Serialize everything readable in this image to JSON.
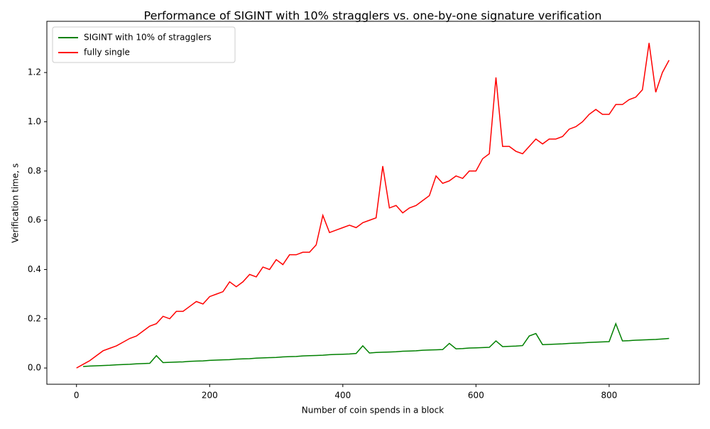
{
  "chart_data": {
    "type": "line",
    "title": "Performance of SIGINT with 10% stragglers vs. one-by-one signature verification",
    "x_label": "Number of coin spends in a block",
    "y_label": "Verification time, s",
    "x": [
      0,
      10,
      20,
      30,
      40,
      50,
      60,
      70,
      80,
      90,
      100,
      110,
      120,
      130,
      140,
      150,
      160,
      170,
      180,
      190,
      200,
      210,
      220,
      230,
      240,
      250,
      260,
      270,
      280,
      290,
      300,
      310,
      320,
      330,
      340,
      350,
      360,
      370,
      380,
      390,
      400,
      410,
      420,
      430,
      440,
      450,
      460,
      470,
      480,
      490,
      500,
      510,
      520,
      530,
      540,
      550,
      560,
      570,
      580,
      590,
      600,
      610,
      620,
      630,
      640,
      650,
      660,
      670,
      680,
      690,
      700,
      710,
      720,
      730,
      740,
      750,
      760,
      770,
      780,
      790,
      800,
      810,
      820,
      830,
      840,
      850,
      860,
      870,
      880,
      890
    ],
    "series": [
      {
        "name": "SIGINT with 10% of stragglers",
        "color": "#008000",
        "values": [
          null,
          0.006,
          0.008,
          0.009,
          0.01,
          0.011,
          0.013,
          0.014,
          0.015,
          0.017,
          0.018,
          0.019,
          0.05,
          0.022,
          0.023,
          0.024,
          0.025,
          0.027,
          0.028,
          0.029,
          0.031,
          0.032,
          0.033,
          0.034,
          0.036,
          0.037,
          0.038,
          0.04,
          0.041,
          0.042,
          0.043,
          0.045,
          0.046,
          0.047,
          0.049,
          0.05,
          0.051,
          0.052,
          0.054,
          0.055,
          0.056,
          0.057,
          0.059,
          0.09,
          0.061,
          0.063,
          0.064,
          0.065,
          0.066,
          0.068,
          0.069,
          0.07,
          0.072,
          0.073,
          0.074,
          0.075,
          0.1,
          0.078,
          0.079,
          0.081,
          0.082,
          0.083,
          0.084,
          0.11,
          0.087,
          0.088,
          0.089,
          0.091,
          0.13,
          0.14,
          0.095,
          0.096,
          0.097,
          0.098,
          0.1,
          0.101,
          0.102,
          0.104,
          0.105,
          0.106,
          0.107,
          0.18,
          0.11,
          0.111,
          0.113,
          0.114,
          0.115,
          0.116,
          0.118,
          0.12
        ]
      },
      {
        "name": "fully single",
        "color": "#ff0000",
        "values": [
          0.0,
          0.015,
          0.03,
          0.05,
          0.07,
          0.08,
          0.09,
          0.105,
          0.12,
          0.13,
          0.15,
          0.17,
          0.18,
          0.21,
          0.2,
          0.23,
          0.23,
          0.25,
          0.27,
          0.26,
          0.29,
          0.3,
          0.31,
          0.35,
          0.33,
          0.35,
          0.38,
          0.37,
          0.41,
          0.4,
          0.44,
          0.42,
          0.46,
          0.46,
          0.47,
          0.47,
          0.5,
          0.62,
          0.55,
          0.56,
          0.57,
          0.58,
          0.57,
          0.59,
          0.6,
          0.61,
          0.82,
          0.65,
          0.66,
          0.63,
          0.65,
          0.66,
          0.68,
          0.7,
          0.78,
          0.75,
          0.76,
          0.78,
          0.77,
          0.8,
          0.8,
          0.85,
          0.87,
          1.18,
          0.9,
          0.9,
          0.88,
          0.87,
          0.9,
          0.93,
          0.91,
          0.93,
          0.93,
          0.94,
          0.97,
          0.98,
          1.0,
          1.03,
          1.05,
          1.03,
          1.03,
          1.07,
          1.07,
          1.09,
          1.1,
          1.13,
          1.32,
          1.12,
          1.2,
          1.25
        ]
      }
    ],
    "xlim": [
      -44.5,
      935.5
    ],
    "ylim": [
      -0.066,
      1.408
    ],
    "xticks": [
      0,
      200,
      400,
      600,
      800
    ],
    "yticks": [
      {
        "value": 0,
        "label": "0.0"
      },
      0.2,
      0.4,
      0.6,
      0.8,
      {
        "value": 1,
        "label": "1.0"
      },
      1.2
    ],
    "legend": "upper left"
  }
}
